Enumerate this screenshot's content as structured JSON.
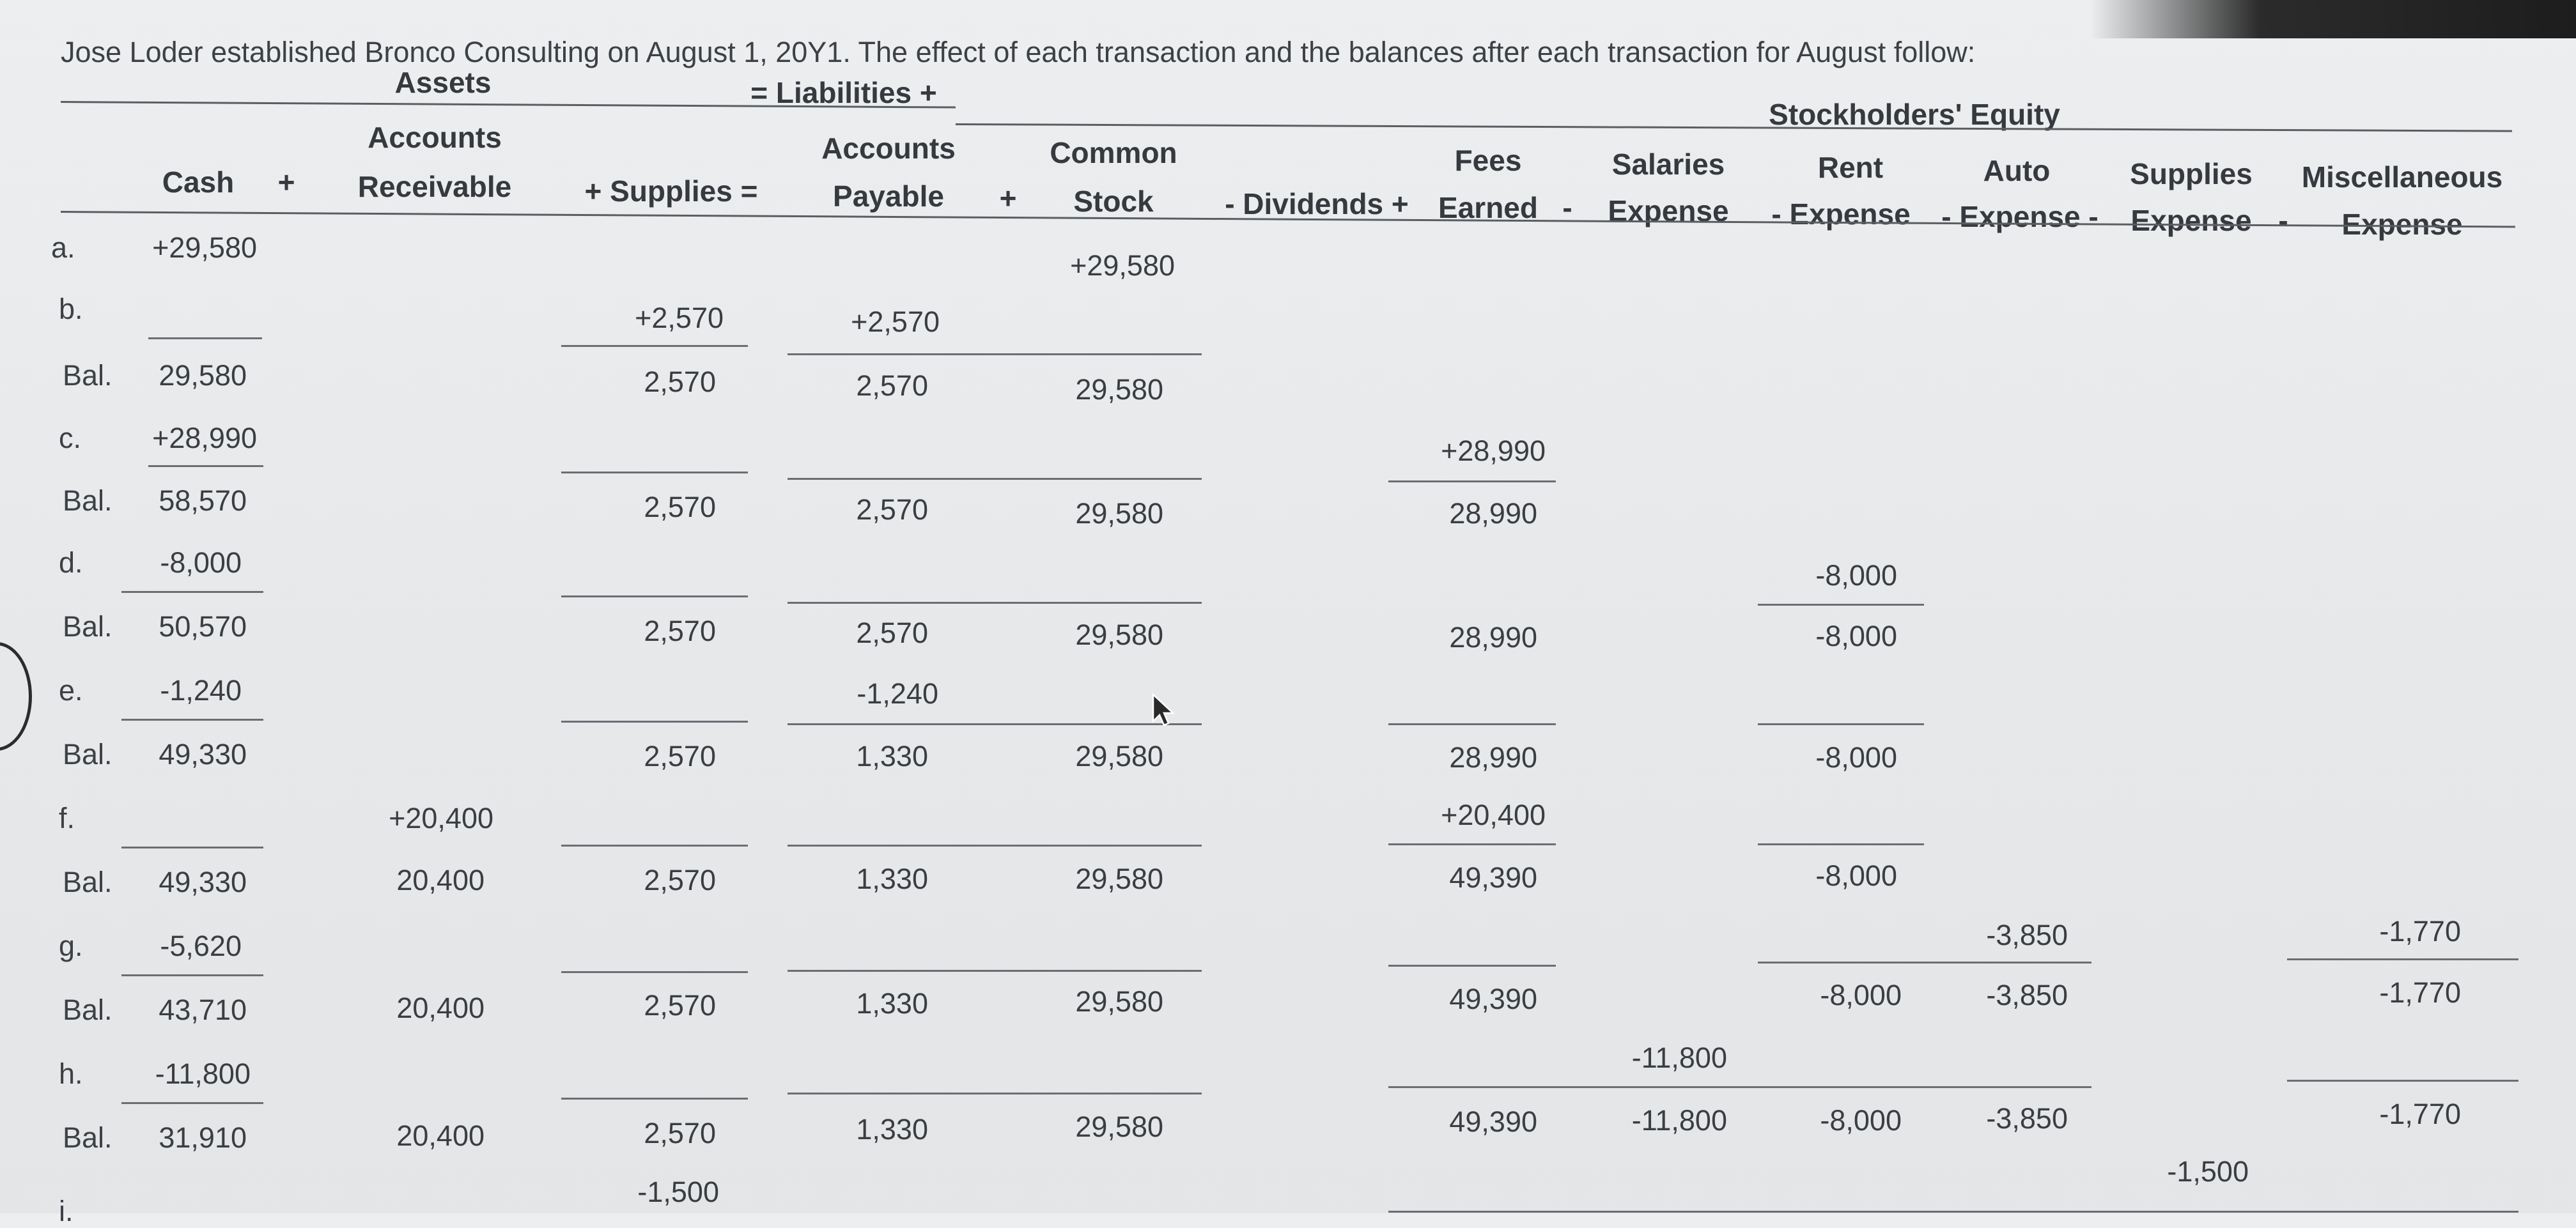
{
  "intro": "Jose Loder established Bronco Consulting on August 1, 20Y1. The effect of each transaction and the balances after each transaction for August follow:",
  "groups": {
    "assets": "Assets",
    "liabilities": "= Liabilities +",
    "equity": "Stockholders' Equity"
  },
  "columns": {
    "cash": "Cash",
    "ar_1": "Accounts",
    "ar_2": "Receivable",
    "supplies": "+ Supplies =",
    "ap_1": "Accounts",
    "ap_2": "Payable",
    "cs_1": "Common",
    "cs_2": "Stock",
    "dividends": "- Dividends +",
    "fees_1": "Fees",
    "fees_2": "Earned",
    "sal_1": "Salaries",
    "sal_2": "Expense",
    "rent_1": "Rent",
    "rent_2": "- Expense",
    "auto_1": "Auto",
    "auto_2": "- Expense -",
    "supexp_1": "Supplies",
    "supexp_2": "Expense",
    "misc_1": "Miscellaneous",
    "misc_2": "Expense"
  },
  "operators": {
    "plus1": "+",
    "plus2": "+",
    "minus1": "-",
    "minus2": "-"
  },
  "rows": {
    "a": {
      "label": "a.",
      "cash": "+29,580",
      "cs": "+29,580"
    },
    "b": {
      "label": "b.",
      "supplies": "+2,570",
      "ap": "+2,570"
    },
    "bal1": {
      "label": "Bal.",
      "cash": "29,580",
      "supplies": "2,570",
      "ap": "2,570",
      "cs": "29,580"
    },
    "c": {
      "label": "c.",
      "cash": "+28,990",
      "fees": "+28,990"
    },
    "bal2": {
      "label": "Bal.",
      "cash": "58,570",
      "supplies": "2,570",
      "ap": "2,570",
      "cs": "29,580",
      "fees": "28,990"
    },
    "d": {
      "label": "d.",
      "cash": "-8,000",
      "rent": "-8,000"
    },
    "bal3": {
      "label": "Bal.",
      "cash": "50,570",
      "supplies": "2,570",
      "ap": "2,570",
      "cs": "29,580",
      "fees": "28,990",
      "rent": "-8,000"
    },
    "e": {
      "label": "e.",
      "cash": "-1,240",
      "ap": "-1,240"
    },
    "bal4": {
      "label": "Bal.",
      "cash": "49,330",
      "supplies": "2,570",
      "ap": "1,330",
      "cs": "29,580",
      "fees": "28,990",
      "rent": "-8,000"
    },
    "f": {
      "label": "f.",
      "ar": "+20,400",
      "fees": "+20,400"
    },
    "bal5": {
      "label": "Bal.",
      "cash": "49,330",
      "ar": "20,400",
      "supplies": "2,570",
      "ap": "1,330",
      "cs": "29,580",
      "fees": "49,390",
      "rent": "-8,000"
    },
    "g": {
      "label": "g.",
      "cash": "-5,620",
      "auto": "-3,850",
      "misc": "-1,770"
    },
    "bal6": {
      "label": "Bal.",
      "cash": "43,710",
      "ar": "20,400",
      "supplies": "2,570",
      "ap": "1,330",
      "cs": "29,580",
      "fees": "49,390",
      "rent": "-8,000",
      "auto": "-3,850",
      "misc": "-1,770"
    },
    "h": {
      "label": "h.",
      "cash": "-11,800",
      "sal": "-11,800"
    },
    "bal7": {
      "label": "Bal.",
      "cash": "31,910",
      "ar": "20,400",
      "supplies": "2,570",
      "ap": "1,330",
      "cs": "29,580",
      "fees": "49,390",
      "sal": "-11,800",
      "rent": "-8,000",
      "auto": "-3,850",
      "misc": "-1,770"
    },
    "i": {
      "label": "i.",
      "supplies": "-1,500",
      "supexp": "-1,500"
    }
  }
}
